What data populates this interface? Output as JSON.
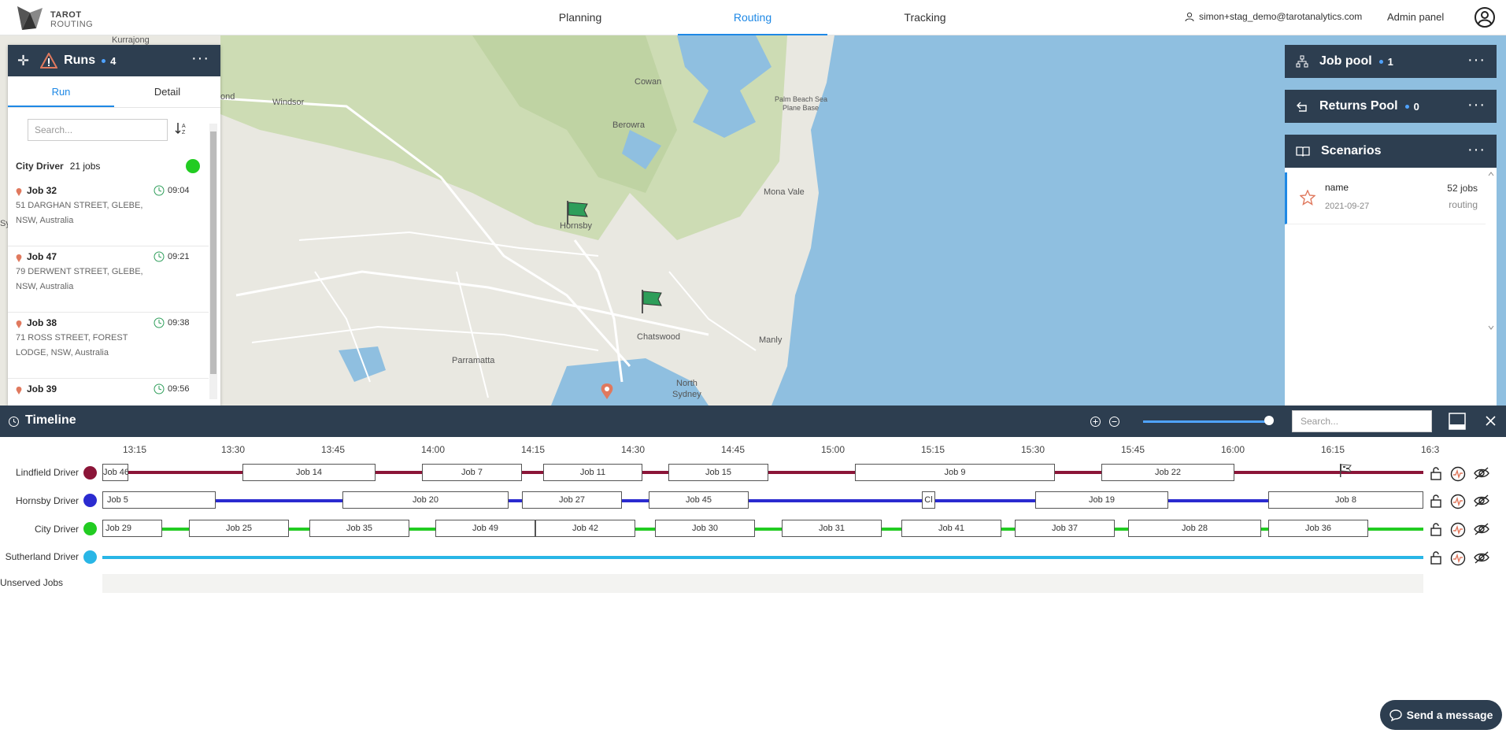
{
  "app": {
    "logo_line1": "TAROT",
    "logo_line2": "ROUTING"
  },
  "nav": {
    "tabs": [
      {
        "label": "Planning"
      },
      {
        "label": "Routing"
      },
      {
        "label": "Tracking"
      }
    ],
    "user_email": "simon+stag_demo@tarotanalytics.com",
    "admin_label": "Admin panel"
  },
  "map": {
    "places": [
      "Kurrajong",
      "Windsor",
      "Cowan",
      "Berowra",
      "Palm Beach Sea",
      "Plane Base",
      "Mona Vale",
      "Hornsby",
      "Chatswood",
      "Manly",
      "Parramatta",
      "North",
      "Sydney",
      "ond",
      "Sy"
    ]
  },
  "runs": {
    "title": "Runs",
    "count": "4",
    "tabs": [
      "Run",
      "Detail"
    ],
    "search_placeholder": "Search...",
    "driver": {
      "name": "City Driver",
      "jobs": "21 jobs"
    },
    "jobs": [
      {
        "name": "Job 32",
        "time": "09:04",
        "addr1": "51 DARGHAN STREET, GLEBE,",
        "addr2": "NSW, Australia"
      },
      {
        "name": "Job 47",
        "time": "09:21",
        "addr1": "79 DERWENT STREET, GLEBE,",
        "addr2": "NSW, Australia"
      },
      {
        "name": "Job 38",
        "time": "09:38",
        "addr1": "71 ROSS STREET, FOREST",
        "addr2": "LODGE, NSW, Australia"
      },
      {
        "name": "Job 39",
        "time": "09:56",
        "addr1": "",
        "addr2": ""
      }
    ]
  },
  "job_pool": {
    "title": "Job pool",
    "count": "1"
  },
  "returns_pool": {
    "title": "Returns Pool",
    "count": "0"
  },
  "scenarios": {
    "title": "Scenarios",
    "items": [
      {
        "name": "name",
        "date": "2021-09-27",
        "jobs": "52 jobs",
        "kind": "routing"
      }
    ]
  },
  "timeline": {
    "title": "Timeline",
    "search_placeholder": "Search...",
    "ticks": [
      "13:15",
      "13:30",
      "13:45",
      "14:00",
      "14:15",
      "14:30",
      "14:45",
      "15:00",
      "15:15",
      "15:30",
      "15:45",
      "16:00",
      "16:15",
      "16:3"
    ],
    "rows": [
      {
        "label": "Lindfield Driver",
        "color": "#8b1538",
        "jobs": [
          "Job 46",
          "Job 14",
          "Job 7",
          "Job 11",
          "Job 15",
          "Job 9",
          "Job 22"
        ]
      },
      {
        "label": "Hornsby Driver",
        "color": "#2b2bd0",
        "jobs": [
          "Job 5",
          "Job 20",
          "Job 27",
          "Job 45",
          "Cl",
          "Job 19",
          "Job 8"
        ]
      },
      {
        "label": "City Driver",
        "color": "#22cc22",
        "jobs": [
          "Job 29",
          "Job 25",
          "Job 35",
          "Job 49",
          "Job 42",
          "Job 30",
          "Job 31",
          "Job 41",
          "Job 37",
          "Job 28",
          "Job 36"
        ]
      },
      {
        "label": "Sutherland Driver",
        "color": "#29b6e6",
        "jobs": []
      }
    ],
    "unserved_label": "Unserved Jobs"
  },
  "chat": {
    "label": "Send a message"
  }
}
